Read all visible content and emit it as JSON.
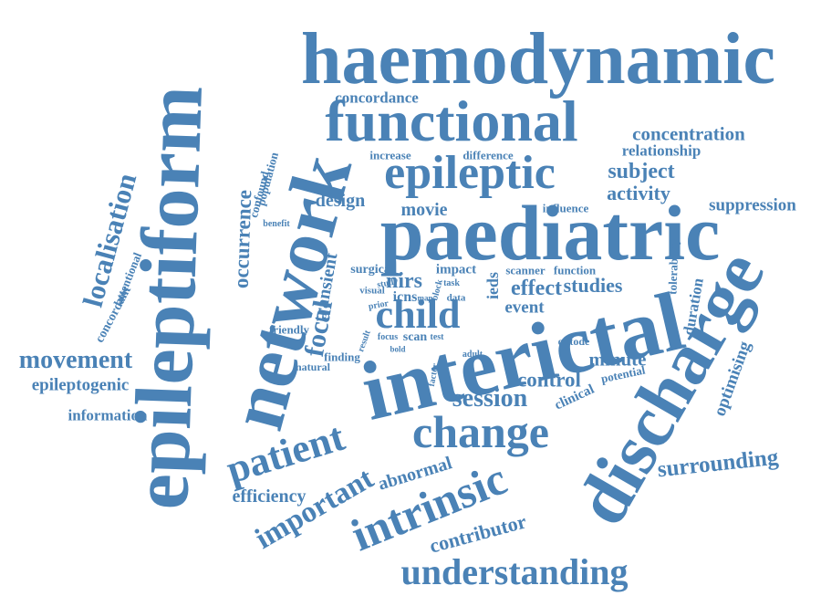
{
  "theme": {
    "word_color": "#4a82b6",
    "background": "#ffffff"
  },
  "words": [
    "haemodynamic",
    "functional",
    "concordance",
    "concentration",
    "relationship",
    "epileptic",
    "subject",
    "activity",
    "suppression",
    "difference",
    "increase",
    "design",
    "movie",
    "influence",
    "paediatric",
    "network",
    "epileptiform",
    "occurrence",
    "population",
    "confound",
    "benefit",
    "localisation",
    "attentional",
    "concordant",
    "movement",
    "epileptogenic",
    "information",
    "surgical",
    "nirs",
    "impact",
    "scanner",
    "function",
    "studies",
    "ieds",
    "effect",
    "event",
    "icns",
    "child",
    "transient",
    "visual",
    "study",
    "prior",
    "map",
    "block",
    "data",
    "task",
    "focal",
    "friendly",
    "result",
    "bold",
    "finding",
    "natural",
    "focus",
    "scan",
    "test",
    "optode",
    "adult",
    "factor",
    "potential",
    "clinical",
    "minute",
    "control",
    "interictal",
    "session",
    "change",
    "patient",
    "discharge",
    "tolerability",
    "duration",
    "optimising",
    "surrounding",
    "abnormal",
    "intrinsic",
    "efficiency",
    "important",
    "contributor",
    "understanding"
  ]
}
